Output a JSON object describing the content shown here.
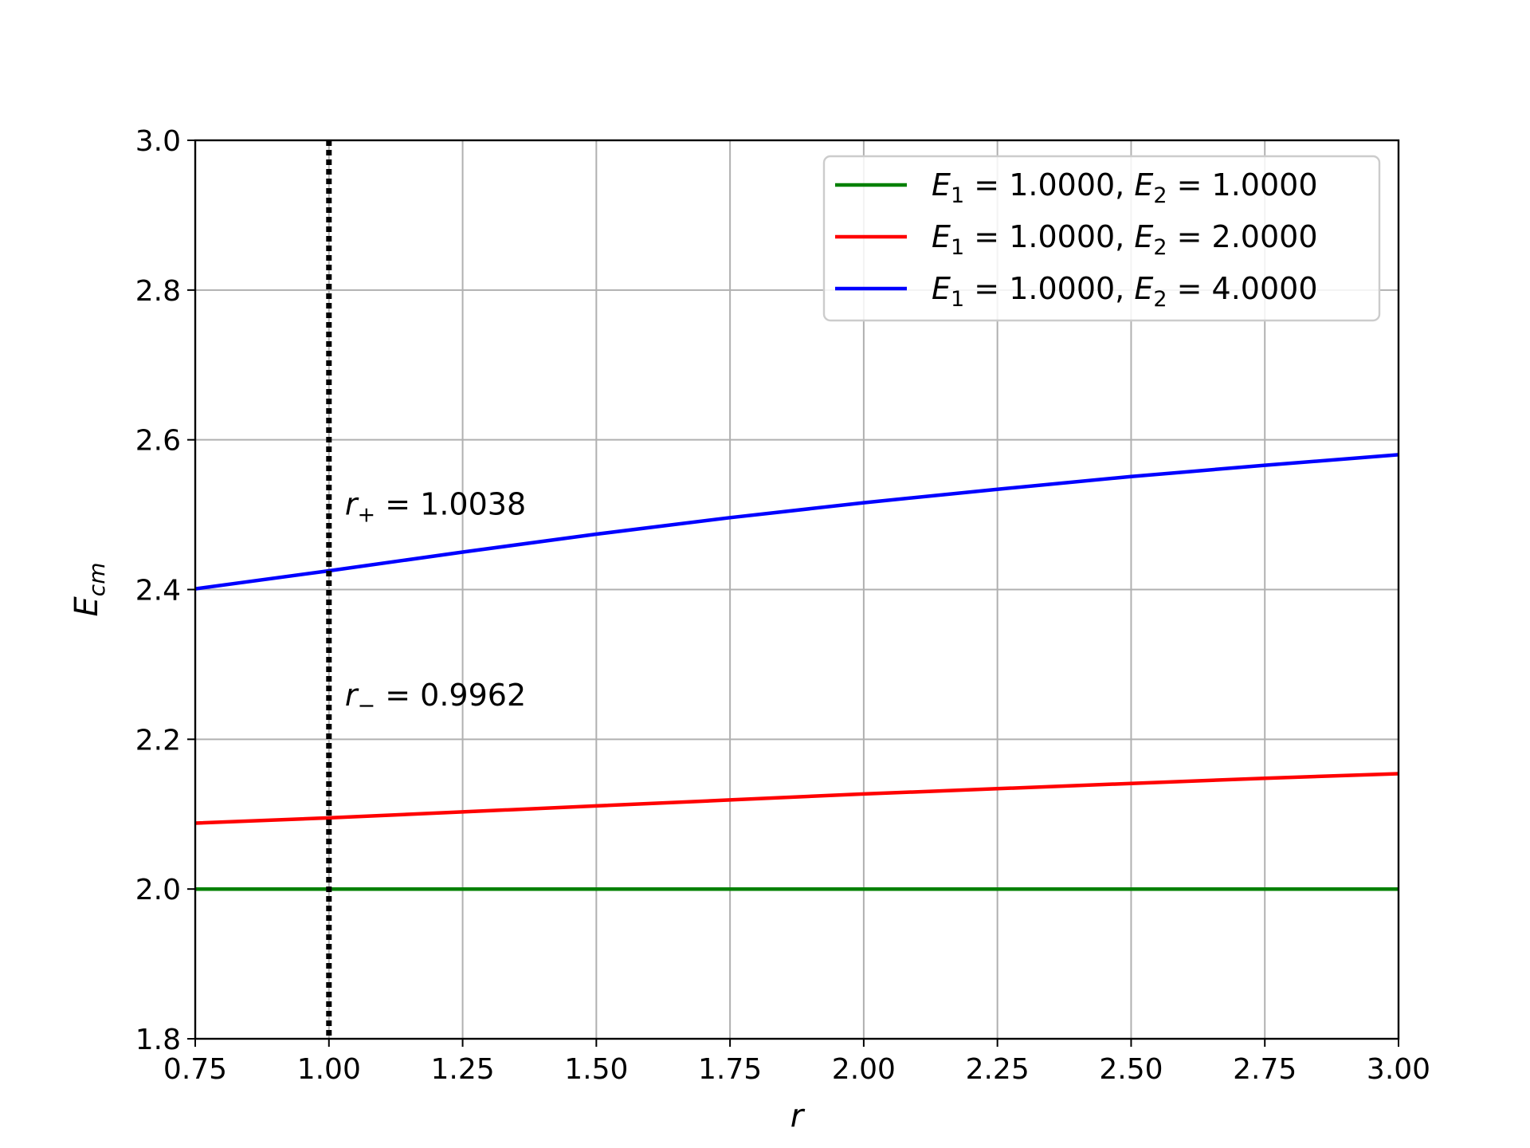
{
  "chart_data": {
    "type": "line",
    "title": "",
    "xlabel": "r",
    "ylabel": "E",
    "ylabel_sub": "cm",
    "xlim": [
      0.75,
      3.0
    ],
    "ylim": [
      1.8,
      3.0
    ],
    "grid": true,
    "legend_position": "upper-right",
    "x_ticks": [
      0.75,
      1.0,
      1.25,
      1.5,
      1.75,
      2.0,
      2.25,
      2.5,
      2.75,
      3.0
    ],
    "x_tick_labels": [
      "0.75",
      "1.00",
      "1.25",
      "1.50",
      "1.75",
      "2.00",
      "2.25",
      "2.50",
      "2.75",
      "3.00"
    ],
    "y_ticks": [
      1.8,
      2.0,
      2.2,
      2.4,
      2.6,
      2.8,
      3.0
    ],
    "y_tick_labels": [
      "1.8",
      "2.0",
      "2.2",
      "2.4",
      "2.6",
      "2.8",
      "3.0"
    ],
    "x": [
      0.75,
      1.0,
      1.25,
      1.5,
      1.75,
      2.0,
      2.25,
      2.5,
      2.75,
      3.0
    ],
    "series": [
      {
        "legend": {
          "E1": "1.0000",
          "E2": "1.0000"
        },
        "color": "#008000",
        "values": [
          2.0,
          2.0,
          2.0,
          2.0,
          2.0,
          2.0,
          2.0,
          2.0,
          2.0,
          2.0
        ]
      },
      {
        "legend": {
          "E1": "1.0000",
          "E2": "2.0000"
        },
        "color": "#ff0000",
        "values": [
          2.088,
          2.095,
          2.103,
          2.111,
          2.119,
          2.127,
          2.134,
          2.141,
          2.148,
          2.154
        ]
      },
      {
        "legend": {
          "E1": "1.0000",
          "E2": "4.0000"
        },
        "color": "#0000ff",
        "values": [
          2.401,
          2.425,
          2.45,
          2.474,
          2.496,
          2.516,
          2.534,
          2.551,
          2.566,
          2.58
        ]
      }
    ],
    "vertical_line": {
      "x": 1.0,
      "style": "dotted",
      "color": "#000000"
    },
    "annotations": [
      {
        "symbol": "r",
        "sub": "+",
        "value": "1.0038",
        "x": 1.03,
        "y": 2.5
      },
      {
        "symbol": "r",
        "sub": "−",
        "value": "0.9962",
        "x": 1.03,
        "y": 2.245
      }
    ]
  }
}
